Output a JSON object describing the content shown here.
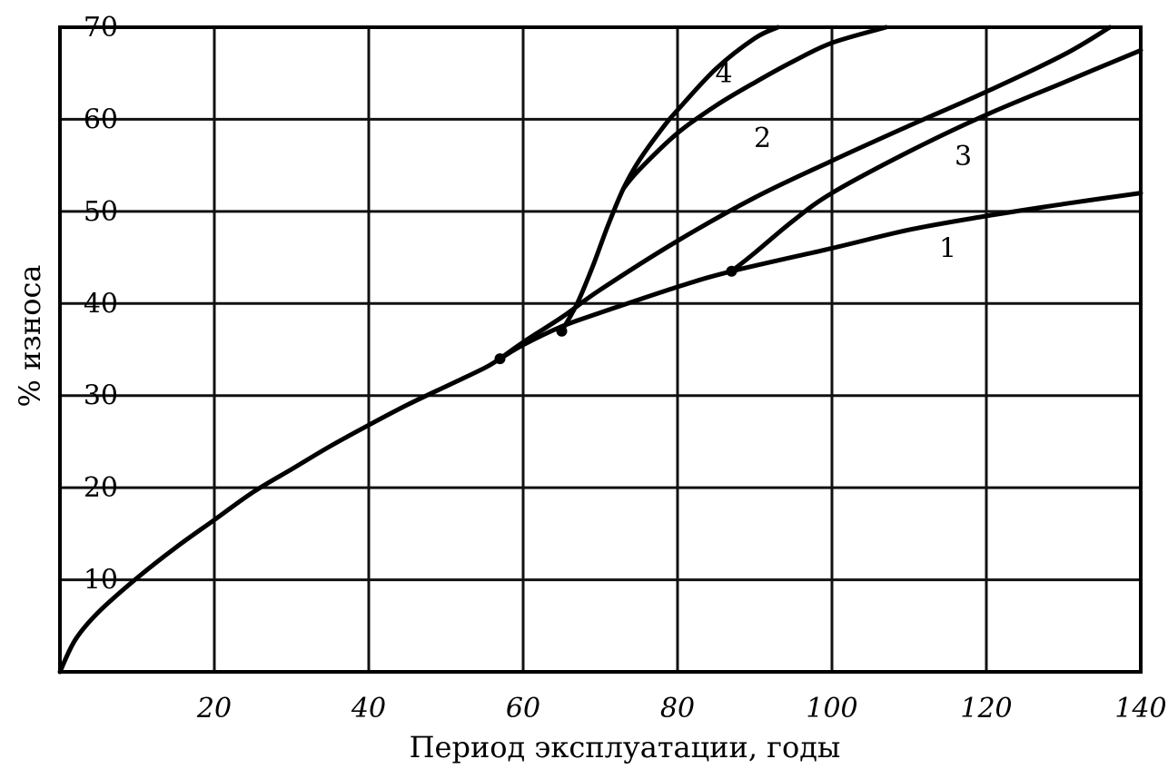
{
  "chart_data": {
    "type": "line",
    "title": "",
    "xlabel": "Период эксплуатации, годы",
    "ylabel": "% износа",
    "xlim": [
      0,
      140
    ],
    "ylim": [
      0,
      70
    ],
    "x_ticks": [
      20,
      40,
      60,
      80,
      100,
      120,
      140
    ],
    "y_ticks": [
      10,
      20,
      30,
      40,
      50,
      60,
      70
    ],
    "grid": true,
    "series": [
      {
        "name": "1",
        "x": [
          0,
          2,
          5,
          10,
          15,
          20,
          25,
          30,
          35,
          40,
          45,
          50,
          55,
          57,
          60,
          65,
          70,
          80,
          87,
          100,
          110,
          120,
          130,
          140
        ],
        "y": [
          0,
          3.5,
          6.5,
          10.2,
          13.5,
          16.5,
          19.5,
          22,
          24.5,
          26.8,
          29,
          31,
          33,
          34,
          35.5,
          37.5,
          39,
          41.8,
          43.5,
          46,
          48,
          49.5,
          50.8,
          52
        ]
      },
      {
        "name": "2",
        "x": [
          57,
          60,
          65,
          70,
          80,
          90,
          100,
          110,
          120,
          130,
          136
        ],
        "y": [
          34,
          35.8,
          38.5,
          41.5,
          46.8,
          51.5,
          55.5,
          59.3,
          63,
          67,
          70
        ]
      },
      {
        "name": "3",
        "x": [
          87,
          90,
          95,
          100,
          110,
          120,
          130,
          140
        ],
        "y": [
          43.5,
          45.5,
          49,
          52,
          56.5,
          60.5,
          64,
          67.5
        ]
      },
      {
        "name": "4",
        "x": [
          65,
          67,
          69,
          71,
          73,
          75,
          78,
          80,
          85,
          90,
          93
        ],
        "y": [
          37,
          40,
          44,
          48.5,
          52.5,
          55.5,
          59,
          61,
          65.5,
          68.8,
          70
        ]
      },
      {
        "name": "4",
        "x": [
          73,
          75,
          80,
          85,
          90,
          95,
          100,
          107
        ],
        "y": [
          52.5,
          54.5,
          58.5,
          61.5,
          64,
          66.3,
          68.3,
          70
        ]
      }
    ],
    "curve_labels": [
      {
        "text": "1",
        "x": 115,
        "y": 45
      },
      {
        "text": "2",
        "x": 91,
        "y": 57
      },
      {
        "text": "3",
        "x": 117,
        "y": 55
      },
      {
        "text": "4",
        "x": 86,
        "y": 64
      }
    ],
    "markers": [
      {
        "x": 57,
        "y": 34
      },
      {
        "x": 65,
        "y": 37
      },
      {
        "x": 87,
        "y": 43.5
      }
    ]
  }
}
